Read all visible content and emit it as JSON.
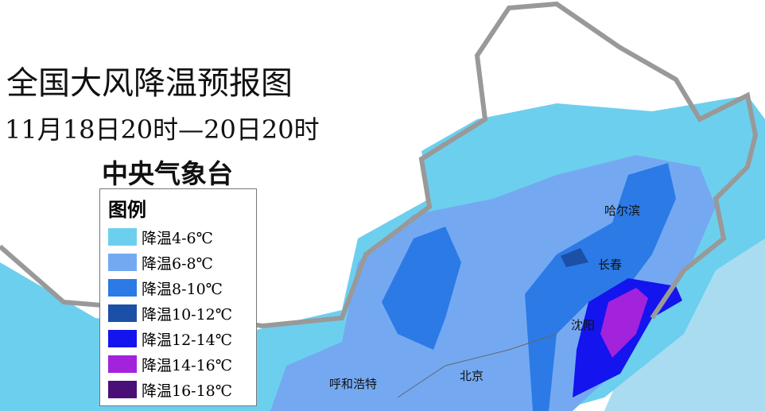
{
  "header": {
    "title": "全国大风降温预报图",
    "subtitle": "11月18日20时—20日20时",
    "agency": "中央气象台"
  },
  "legend": {
    "title": "图例",
    "items": [
      {
        "label": "降温4-6℃",
        "color": "#6dcfee"
      },
      {
        "label": "降温6-8℃",
        "color": "#74a9f2"
      },
      {
        "label": "降温8-10℃",
        "color": "#2b7ae6"
      },
      {
        "label": "降温10-12℃",
        "color": "#1c4fa6"
      },
      {
        "label": "降温12-14℃",
        "color": "#1414ee"
      },
      {
        "label": "降温14-16℃",
        "color": "#a322dc"
      },
      {
        "label": "降温16-18℃",
        "color": "#4b0f78"
      }
    ]
  },
  "cities": [
    "哈尔滨",
    "长春",
    "沈阳",
    "北京",
    "呼和浩特"
  ]
}
